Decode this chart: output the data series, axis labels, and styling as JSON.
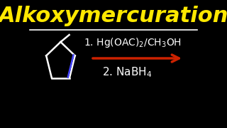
{
  "background_color": "#000000",
  "title": "Alkoxymercuration",
  "title_color": "#FFE800",
  "title_fontsize": 22,
  "separator_color": "#FFFFFF",
  "reagent_line1": "1. Hg(OAC)",
  "reagent_sub2": "2",
  "reagent_line1_suffix": "/CH",
  "reagent_ch3_sub": "3",
  "reagent_line1_end": "OH",
  "reagent_line2": "2. NaBH",
  "reagent_nabh4_sub": "4",
  "arrow_color": "#CC2200",
  "text_color": "#FFFFFF",
  "reagent_fontsize": 10,
  "molecule_color": "#FFFFFF",
  "bond_color_blue": "#4444FF"
}
